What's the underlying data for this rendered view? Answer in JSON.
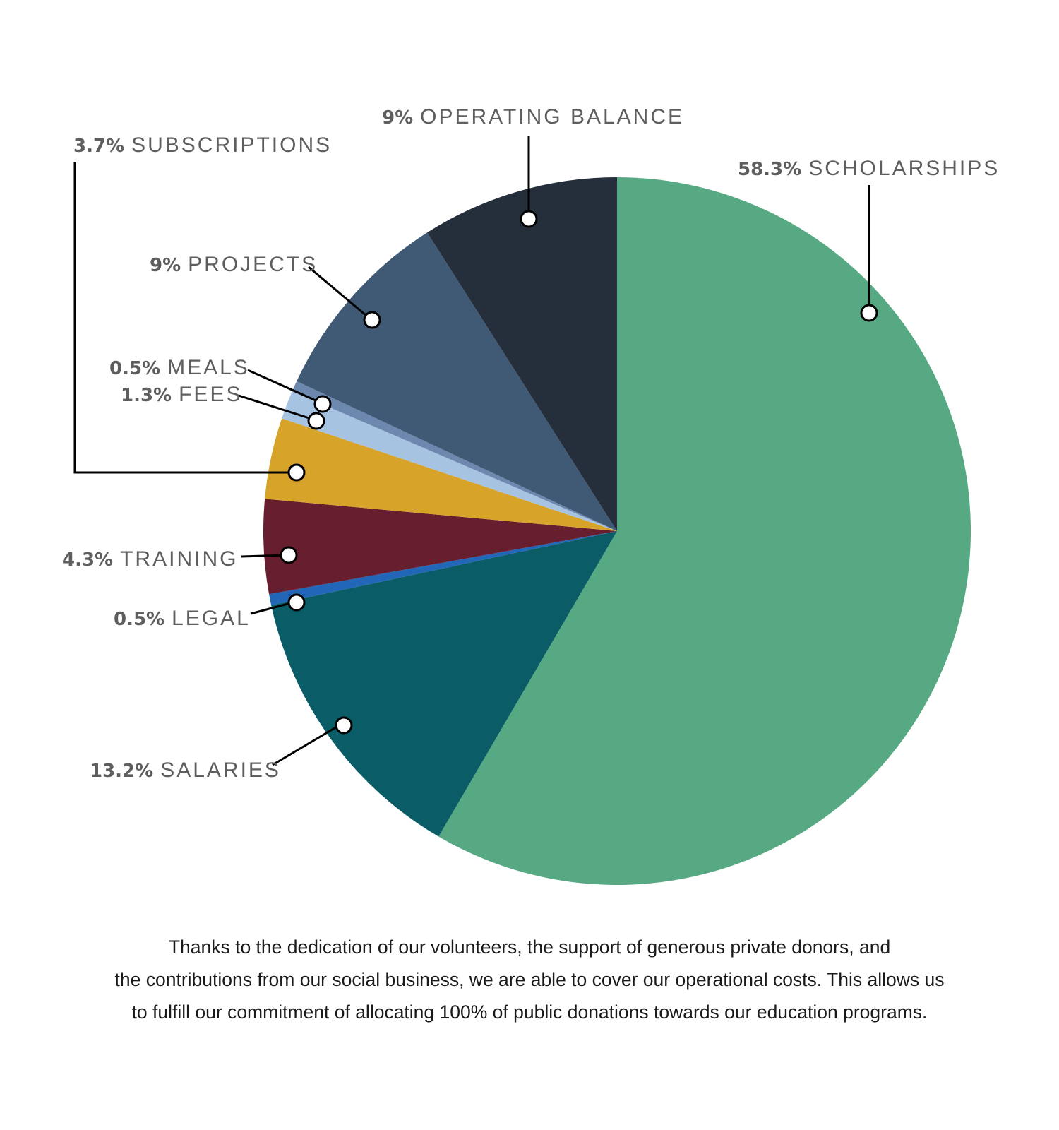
{
  "chart_data": {
    "type": "pie",
    "slices": [
      {
        "label": "SCHOLARSHIPS",
        "pct_text": "58.3%",
        "value": 58.3,
        "color": "#57a983"
      },
      {
        "label": "SALARIES",
        "pct_text": "13.2%",
        "value": 13.2,
        "color": "#0a5c66"
      },
      {
        "label": "LEGAL",
        "pct_text": "0.5%",
        "value": 0.5,
        "color": "#2266b8"
      },
      {
        "label": "TRAINING",
        "pct_text": "4.3%",
        "value": 4.3,
        "color": "#671e2e"
      },
      {
        "label": "SUBSCRIPTIONS",
        "pct_text": "3.7%",
        "value": 3.7,
        "color": "#d7a429"
      },
      {
        "label": "FEES",
        "pct_text": "1.3%",
        "value": 1.3,
        "color": "#a7c3e2"
      },
      {
        "label": "MEALS",
        "pct_text": "0.5%",
        "value": 0.5,
        "color": "#6c88ae"
      },
      {
        "label": "PROJECTS",
        "pct_text": "9%",
        "value": 9,
        "color": "#405a76"
      },
      {
        "label": "OPERATING BALANCE",
        "pct_text": "9%",
        "value": 9,
        "color": "#252f3b"
      }
    ]
  },
  "caption": {
    "line1": "Thanks to the dedication of our volunteers, the support of generous private donors, and",
    "line2": "the contributions from our social business, we are able to cover our operational costs. This allows us",
    "line3": "to fulfill our commitment of allocating 100% of public donations towards our education programs."
  }
}
